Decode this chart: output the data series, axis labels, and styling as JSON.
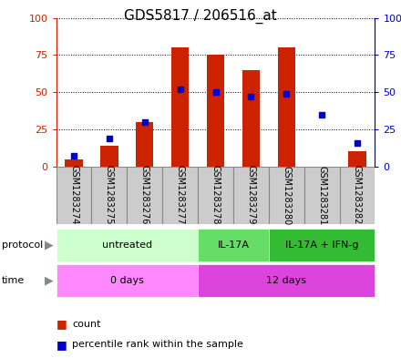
{
  "title": "GDS5817 / 206516_at",
  "samples": [
    "GSM1283274",
    "GSM1283275",
    "GSM1283276",
    "GSM1283277",
    "GSM1283278",
    "GSM1283279",
    "GSM1283280",
    "GSM1283281",
    "GSM1283282"
  ],
  "counts": [
    5,
    14,
    30,
    80,
    75,
    65,
    80,
    0,
    10
  ],
  "percentiles": [
    7,
    19,
    30,
    52,
    50,
    47,
    49,
    35,
    16
  ],
  "protocol_groups": [
    {
      "label": "untreated",
      "start": 0,
      "end": 4,
      "color": "#ccffcc"
    },
    {
      "label": "IL-17A",
      "start": 4,
      "end": 6,
      "color": "#66dd66"
    },
    {
      "label": "IL-17A + IFN-g",
      "start": 6,
      "end": 9,
      "color": "#33bb33"
    }
  ],
  "time_groups": [
    {
      "label": "0 days",
      "start": 0,
      "end": 4,
      "color": "#ff88ff"
    },
    {
      "label": "12 days",
      "start": 4,
      "end": 9,
      "color": "#dd44dd"
    }
  ],
  "ylim": [
    0,
    100
  ],
  "bar_color": "#cc2200",
  "marker_color": "#0000cc",
  "grid_color": "#000000",
  "left_tick_color": "#cc2200",
  "right_tick_color": "#0000cc",
  "legend_count_label": "count",
  "legend_pct_label": "percentile rank within the sample",
  "bg_color": "#ffffff",
  "sample_box_color": "#cccccc",
  "sample_box_border": "#888888",
  "tick_label_fontsize": 7,
  "title_fontsize": 11,
  "bar_width": 0.5
}
